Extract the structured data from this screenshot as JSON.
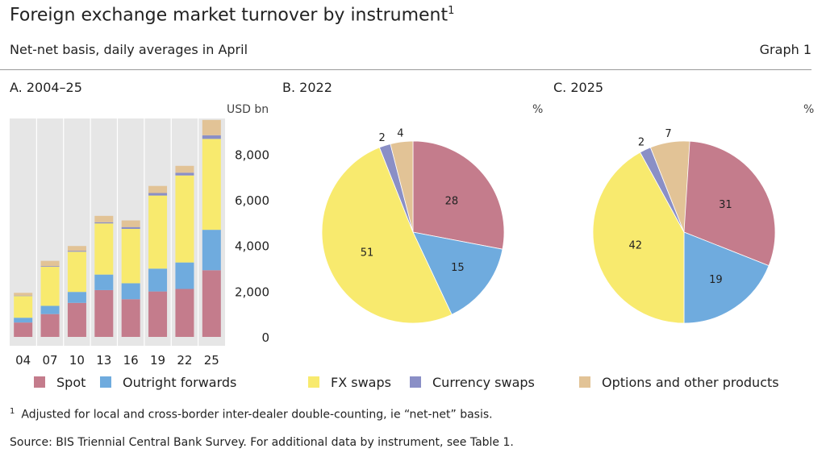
{
  "header": {
    "title": "Foreign exchange market turnover by instrument",
    "title_footnote_mark": "1",
    "subtitle": "Net-net basis, daily averages in April",
    "graph_label": "Graph 1"
  },
  "colors": {
    "spot": "#c47c8c",
    "outright_forwards": "#6fabde",
    "fx_swaps": "#f8ea6e",
    "currency_swaps": "#8a8fc6",
    "options": "#e2c396",
    "panel_bg": "#e6e6e6"
  },
  "legend": [
    {
      "key": "spot",
      "label": "Spot"
    },
    {
      "key": "outright_forwards",
      "label": "Outright forwards"
    },
    {
      "key": "fx_swaps",
      "label": "FX swaps"
    },
    {
      "key": "currency_swaps",
      "label": "Currency swaps"
    },
    {
      "key": "options",
      "label": "Options and other products"
    }
  ],
  "chart_data": [
    {
      "type": "bar",
      "stacked": true,
      "title": "A. 2004–25",
      "unit": "USD bn",
      "categories": [
        "04",
        "07",
        "10",
        "13",
        "16",
        "19",
        "22",
        "25"
      ],
      "ylim": [
        0,
        9000
      ],
      "yticks": [
        0,
        2000,
        4000,
        6000,
        8000
      ],
      "ytick_labels": [
        "0",
        "2,000",
        "4,000",
        "6,000",
        "8,000"
      ],
      "series": [
        {
          "name": "Spot",
          "key": "spot",
          "values": [
            630,
            1000,
            1490,
            2050,
            1650,
            1990,
            2100,
            2920
          ]
        },
        {
          "name": "Outright forwards",
          "key": "outright_forwards",
          "values": [
            210,
            360,
            480,
            680,
            700,
            1000,
            1160,
            1770
          ]
        },
        {
          "name": "FX swaps",
          "key": "fx_swaps",
          "values": [
            950,
            1710,
            1760,
            2240,
            2380,
            3200,
            3810,
            3980
          ]
        },
        {
          "name": "Currency swaps",
          "key": "currency_swaps",
          "values": [
            20,
            30,
            40,
            50,
            80,
            110,
            120,
            160
          ]
        },
        {
          "name": "Options and other products",
          "key": "options",
          "values": [
            120,
            230,
            210,
            280,
            290,
            310,
            300,
            670
          ]
        }
      ]
    },
    {
      "type": "pie",
      "title": "B. 2022",
      "unit": "%",
      "slices": [
        {
          "name": "Spot",
          "key": "spot",
          "value": 28,
          "label": "28"
        },
        {
          "name": "Outright forwards",
          "key": "outright_forwards",
          "value": 15,
          "label": "15"
        },
        {
          "name": "FX swaps",
          "key": "fx_swaps",
          "value": 51,
          "label": "51"
        },
        {
          "name": "Currency swaps",
          "key": "currency_swaps",
          "value": 2,
          "label": "2"
        },
        {
          "name": "Options and other products",
          "key": "options",
          "value": 4,
          "label": "4"
        }
      ]
    },
    {
      "type": "pie",
      "title": "C. 2025",
      "unit": "%",
      "slices": [
        {
          "name": "Spot",
          "key": "spot",
          "value": 31,
          "label": "31"
        },
        {
          "name": "Outright forwards",
          "key": "outright_forwards",
          "value": 19,
          "label": "19"
        },
        {
          "name": "FX swaps",
          "key": "fx_swaps",
          "value": 42,
          "label": "42"
        },
        {
          "name": "Currency swaps",
          "key": "currency_swaps",
          "value": 2,
          "label": "2"
        },
        {
          "name": "Options and other products",
          "key": "options",
          "value": 7,
          "label": "7"
        }
      ]
    }
  ],
  "footnote": {
    "mark": "1",
    "text": "Adjusted for local and cross-border inter-dealer double-counting, ie “net-net” basis."
  },
  "source": "Source: BIS Triennial Central Bank Survey. For additional data by instrument, see Table 1."
}
